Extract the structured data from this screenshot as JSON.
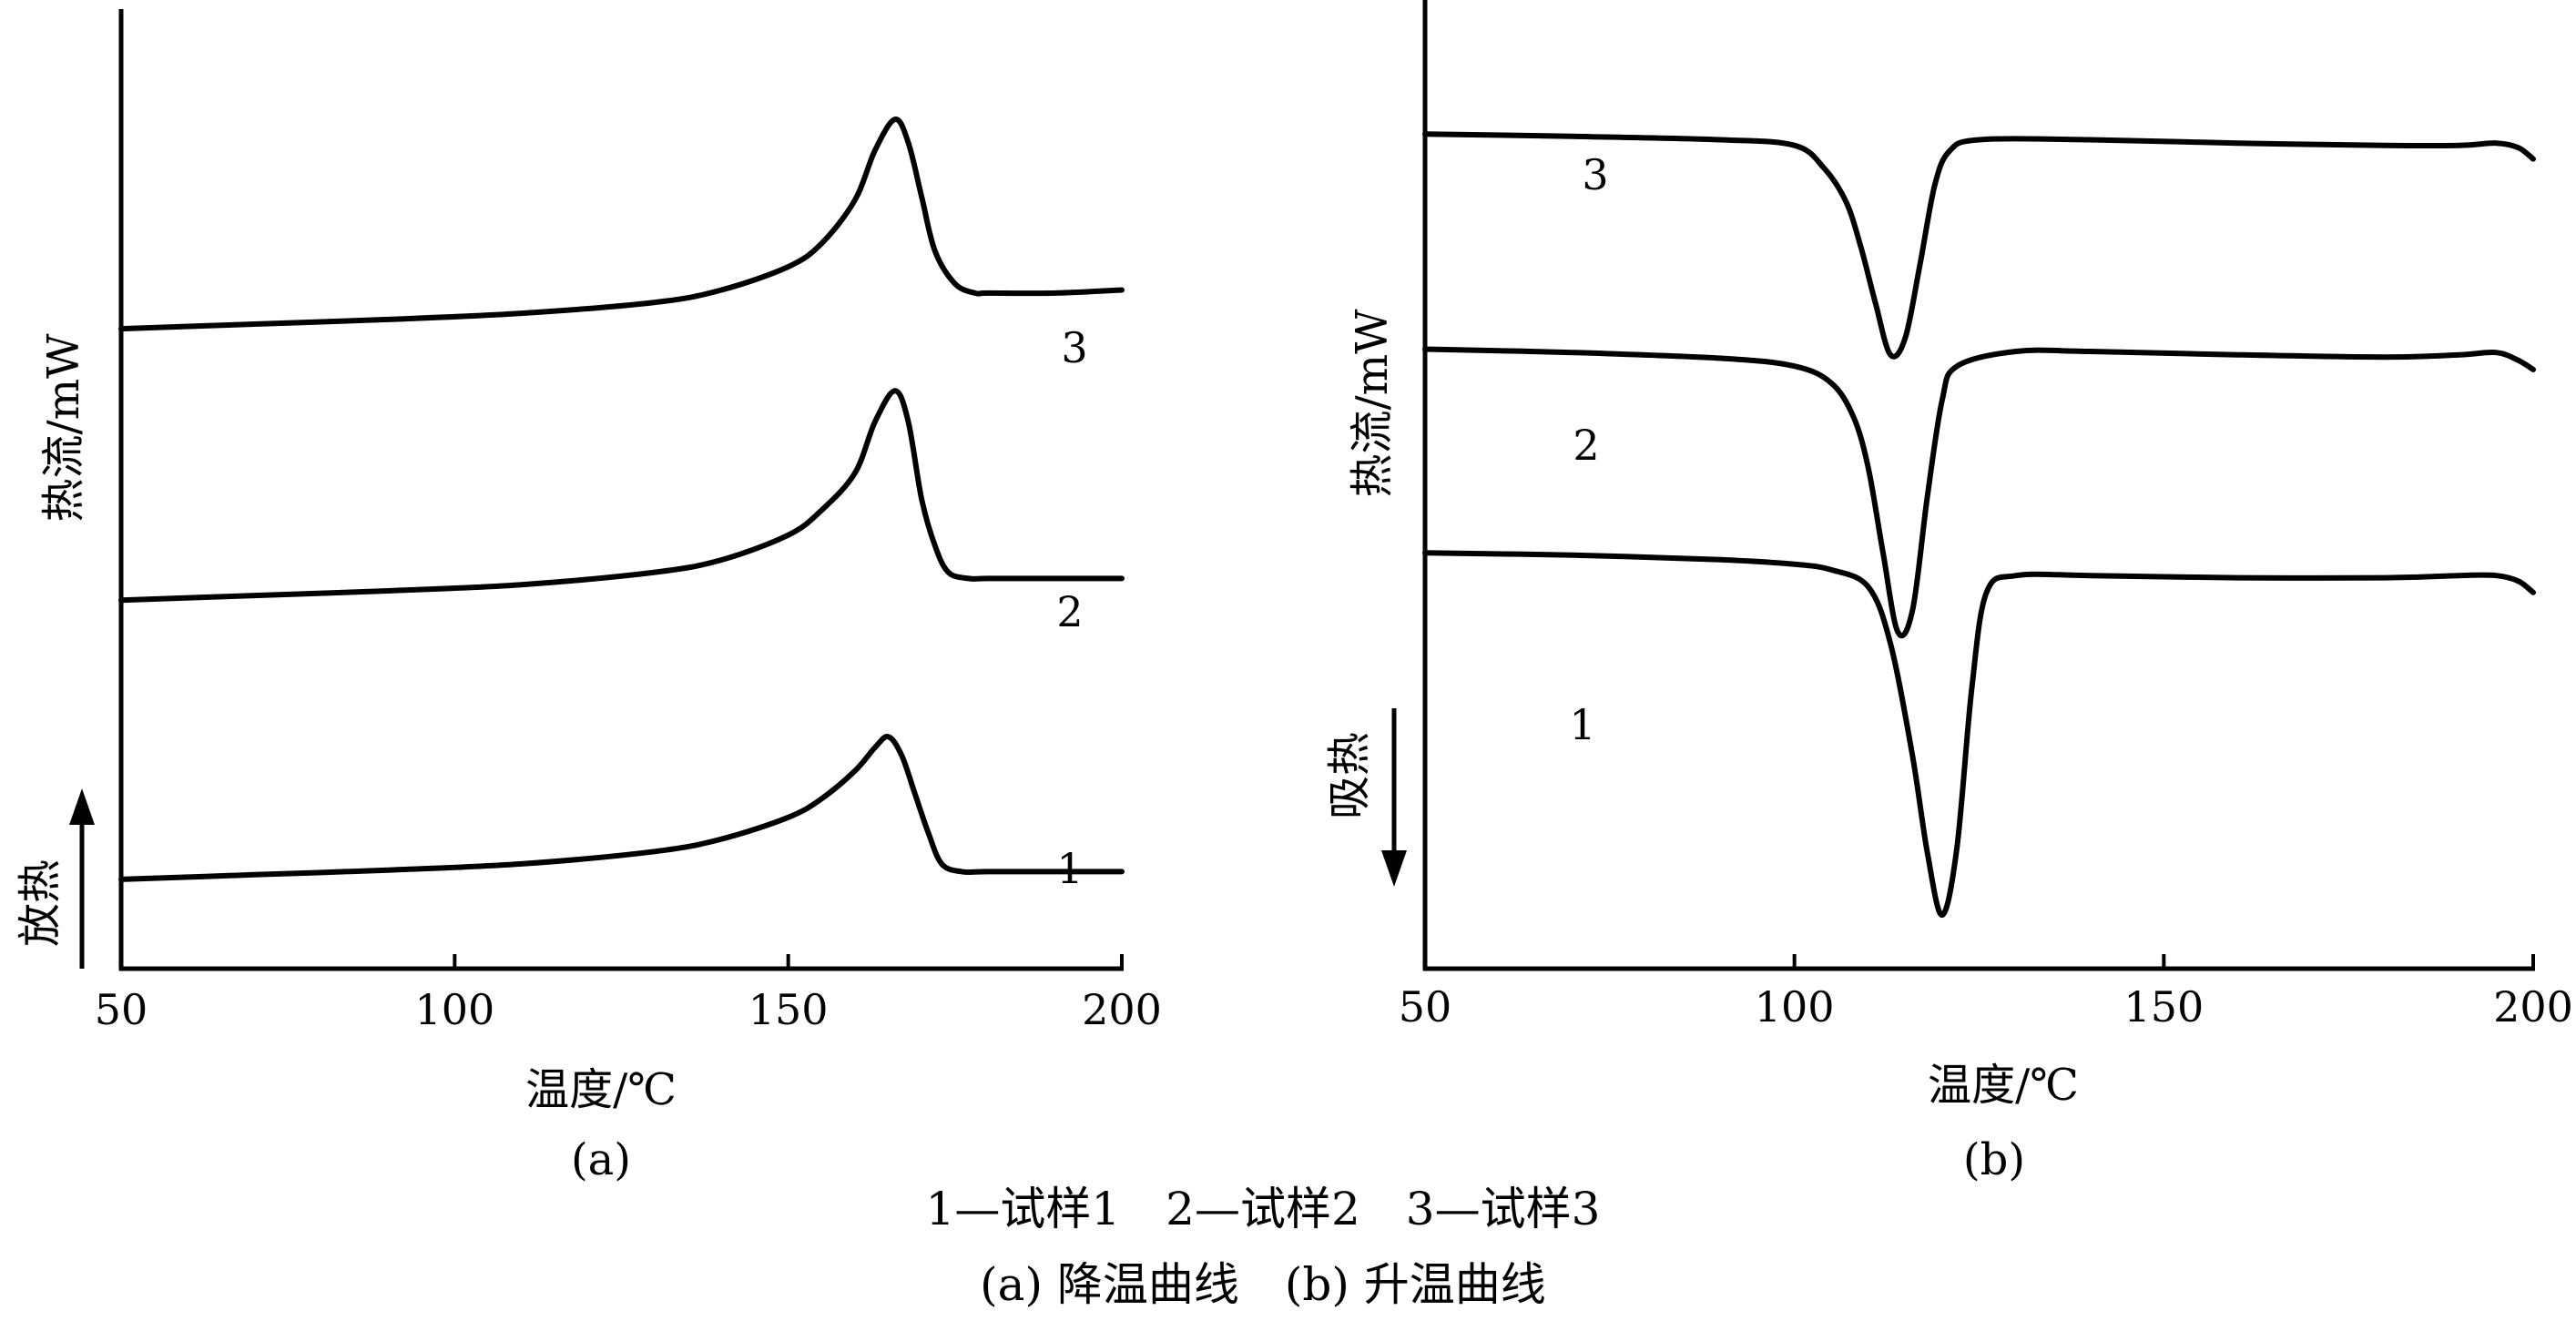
{
  "chart_data": [
    {
      "panel": "(a)",
      "type": "line",
      "xlabel": "温度/℃",
      "ylabel": "热流/mW",
      "direction_label": "放热",
      "direction": "up",
      "xlim": [
        50,
        200
      ],
      "xticks": [
        "50",
        "100",
        "150",
        "200"
      ],
      "y_values_shown": false,
      "series": [
        {
          "label": "1",
          "x": [
            50,
            70,
            90,
            110,
            130,
            140,
            150,
            155,
            160,
            163,
            165,
            167,
            169,
            171,
            173,
            176,
            180,
            190,
            200
          ],
          "y": [
            0.0,
            0.03,
            0.06,
            0.1,
            0.18,
            0.26,
            0.4,
            0.52,
            0.7,
            0.85,
            0.92,
            0.8,
            0.55,
            0.3,
            0.1,
            0.05,
            0.05,
            0.05,
            0.05
          ]
        },
        {
          "label": "2",
          "x": [
            50,
            70,
            90,
            110,
            130,
            140,
            150,
            155,
            160,
            163,
            166,
            168,
            170,
            172,
            174,
            177,
            180,
            190,
            200
          ],
          "y": [
            1.8,
            1.83,
            1.86,
            1.9,
            1.98,
            2.06,
            2.22,
            2.38,
            2.62,
            2.95,
            3.15,
            2.95,
            2.45,
            2.15,
            1.98,
            1.94,
            1.94,
            1.94,
            1.94
          ]
        },
        {
          "label": "3",
          "x": [
            50,
            70,
            90,
            110,
            130,
            140,
            150,
            155,
            160,
            163,
            166,
            168,
            170,
            172,
            175,
            178,
            180,
            190,
            200
          ],
          "y": [
            3.55,
            3.58,
            3.61,
            3.65,
            3.72,
            3.8,
            3.95,
            4.1,
            4.38,
            4.7,
            4.9,
            4.75,
            4.4,
            4.05,
            3.84,
            3.78,
            3.78,
            3.78,
            3.8
          ]
        }
      ]
    },
    {
      "panel": "(b)",
      "type": "line",
      "xlabel": "温度/℃",
      "ylabel": "热流/mW",
      "direction_label": "吸热",
      "direction": "down",
      "xlim": [
        50,
        200
      ],
      "xticks": [
        "50",
        "100",
        "150",
        "200"
      ],
      "y_values_shown": false,
      "series": [
        {
          "label": "1",
          "x": [
            50,
            70,
            90,
            100,
            105,
            110,
            113,
            116,
            118,
            120,
            122,
            124,
            126,
            130,
            140,
            160,
            180,
            190,
            195,
            198,
            200
          ],
          "y": [
            3.2,
            3.18,
            3.14,
            3.1,
            3.05,
            2.9,
            2.4,
            1.4,
            0.55,
            0.0,
            0.6,
            2.0,
            2.85,
            3.0,
            3.0,
            2.98,
            2.98,
            3.0,
            3.0,
            2.95,
            2.85
          ]
        },
        {
          "label": "2",
          "x": [
            50,
            70,
            90,
            100,
            105,
            108,
            110,
            112,
            114,
            116,
            118,
            120,
            122,
            130,
            140,
            160,
            180,
            190,
            195,
            198,
            200
          ],
          "y": [
            5.0,
            4.97,
            4.92,
            4.85,
            4.7,
            4.4,
            3.95,
            3.2,
            2.5,
            2.7,
            3.7,
            4.55,
            4.85,
            4.98,
            4.98,
            4.95,
            4.93,
            4.95,
            4.97,
            4.9,
            4.82
          ]
        },
        {
          "label": "3",
          "x": [
            50,
            70,
            90,
            100,
            104,
            107,
            109,
            111,
            113,
            115,
            117,
            119,
            121,
            125,
            140,
            160,
            180,
            190,
            195,
            198,
            200
          ],
          "y": [
            6.9,
            6.88,
            6.85,
            6.8,
            6.6,
            6.3,
            5.9,
            5.4,
            4.95,
            5.1,
            5.75,
            6.45,
            6.75,
            6.85,
            6.85,
            6.82,
            6.8,
            6.8,
            6.82,
            6.78,
            6.68
          ]
        }
      ]
    }
  ],
  "legend": "1—试样1　2—试样2　3—试样3",
  "caption": "(a) 降温曲线　(b) 升温曲线"
}
